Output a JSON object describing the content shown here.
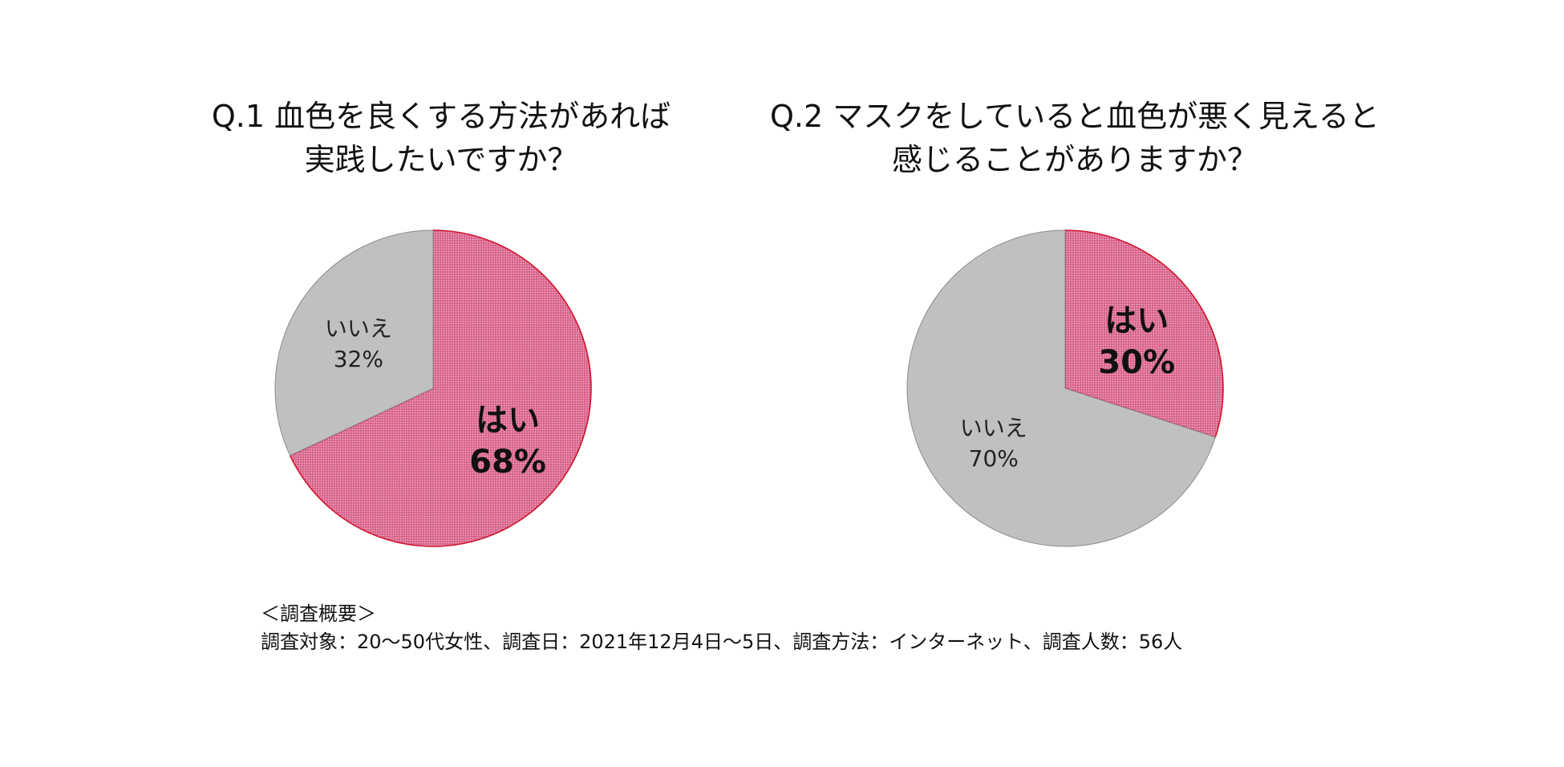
{
  "chart_data": [
    {
      "type": "pie",
      "title_lines": [
        "Q.1 血色を良くする方法があれば",
        "実践したいですか？"
      ],
      "slices": [
        {
          "name": "はい",
          "value": 68,
          "pct_label": "68%",
          "color": "#d9648c",
          "stroke": "#d0142c",
          "emphasis": true
        },
        {
          "name": "いいえ",
          "value": 32,
          "pct_label": "32%",
          "color": "#c0c0c0",
          "stroke": "#8c8c8c",
          "emphasis": false
        }
      ]
    },
    {
      "type": "pie",
      "title_lines": [
        "Q.2 マスクをしていると血色が悪く見えると",
        "感じることがありますか？"
      ],
      "slices": [
        {
          "name": "はい",
          "value": 30,
          "pct_label": "30%",
          "color": "#d9648c",
          "stroke": "#d0142c",
          "emphasis": true
        },
        {
          "name": "いいえ",
          "value": 70,
          "pct_label": "70%",
          "color": "#c0c0c0",
          "stroke": "#8c8c8c",
          "emphasis": false
        }
      ]
    }
  ],
  "footer": {
    "heading": "＜調査概要＞",
    "details": "調査対象：20～50代女性、調査日：2021年12月4日～5日、調査方法：インターネット、調査人数：56人"
  }
}
